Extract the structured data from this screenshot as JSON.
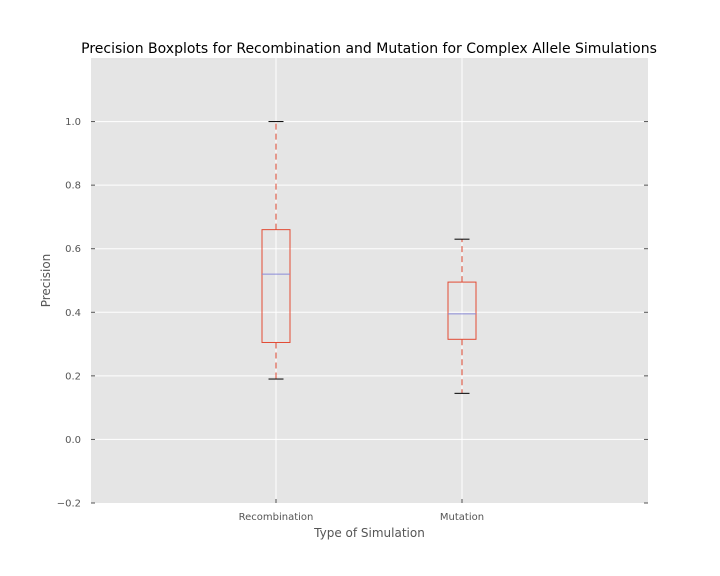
{
  "chart_data": {
    "type": "boxplot",
    "title": "Precision Boxplots for Recombination and Mutation for Complex Allele Simulations",
    "xlabel": "Type of Simulation",
    "ylabel": "Precision",
    "ylim": [
      -0.2,
      1.2
    ],
    "yticks": [
      -0.2,
      0.0,
      0.2,
      0.4,
      0.6,
      0.8,
      1.0
    ],
    "ytick_labels": [
      "−0.2",
      "0.0",
      "0.2",
      "0.4",
      "0.6",
      "0.8",
      "1.0"
    ],
    "categories": [
      "Recombination",
      "Mutation"
    ],
    "boxes": [
      {
        "category": "Recombination",
        "whisker_low": 0.19,
        "q1": 0.305,
        "median": 0.52,
        "q3": 0.66,
        "whisker_high": 1.0
      },
      {
        "category": "Mutation",
        "whisker_low": 0.145,
        "q1": 0.315,
        "median": 0.395,
        "q3": 0.495,
        "whisker_high": 0.63
      }
    ],
    "grid": true,
    "colors": {
      "plot_background": "#e5e5e5",
      "grid": "#ffffff",
      "box": "#e24a33",
      "median": "#8b8bd8",
      "whisker": "#e24a33",
      "cap": "#000000"
    }
  }
}
